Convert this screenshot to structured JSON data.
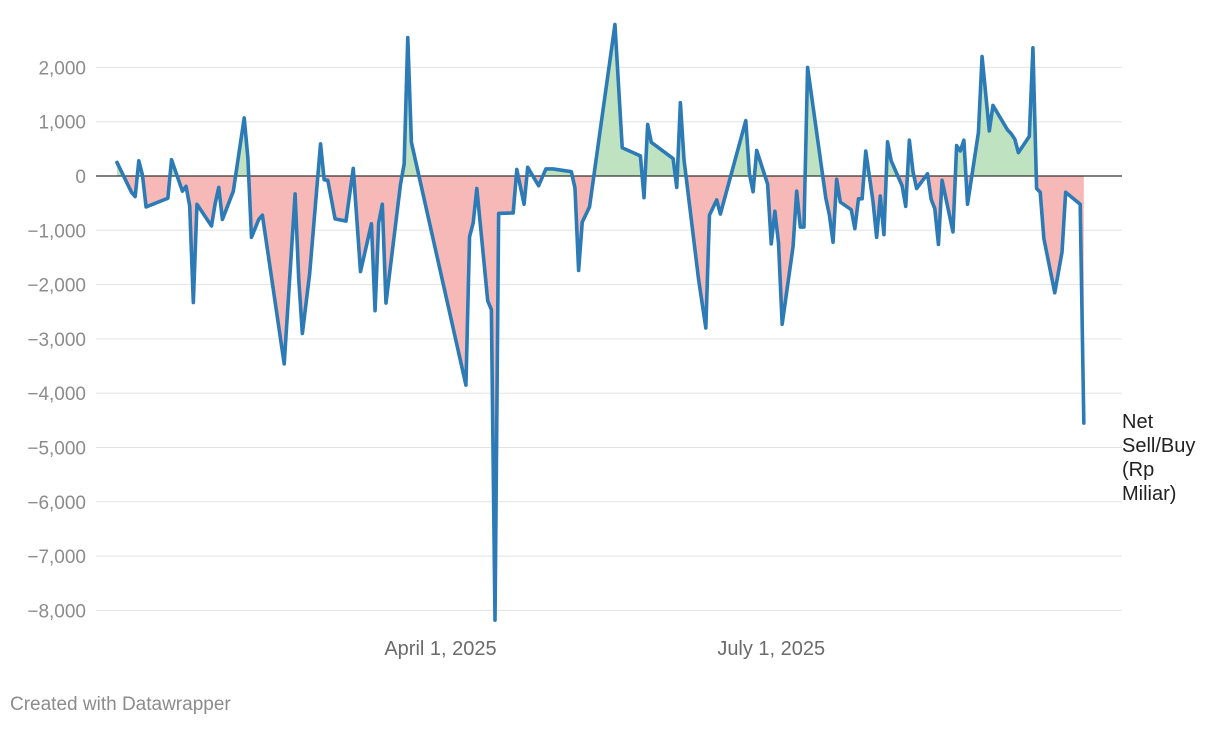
{
  "chart_data": {
    "type": "area",
    "title": "",
    "xlabel": "",
    "ylabel": "",
    "ylim": [
      -8200,
      2850
    ],
    "yticks": [
      2000,
      1000,
      0,
      -1000,
      -2000,
      -3000,
      -4000,
      -5000,
      -6000,
      -7000,
      -8000
    ],
    "ytick_labels": [
      "2,000",
      "1,000",
      "0",
      "−1,000",
      "−2,000",
      "−3,000",
      "−4,000",
      "−5,000",
      "−6,000",
      "−7,000",
      "−8,000"
    ],
    "xrange": [
      "2025-01-02",
      "2025-09-30"
    ],
    "xticks": [
      {
        "date": "2025-04-01",
        "label": "April 1, 2025"
      },
      {
        "date": "2025-07-01",
        "label": "July 1, 2025"
      }
    ],
    "grid": true,
    "colors": {
      "line": "#2c7bb6",
      "positive_fill": "#bfe2c0",
      "negative_fill": "#f7b8b8",
      "zero_line": "#333333",
      "grid": "#e3e3e3"
    },
    "series": [
      {
        "name": "Net Sell/Buy (Rp Miliar)",
        "label_lines": [
          "Net",
          "Sell/Buy",
          "(Rp",
          "Miliar)"
        ],
        "points": [
          [
            "2025-01-02",
            250
          ],
          [
            "2025-01-06",
            -300
          ],
          [
            "2025-01-07",
            -380
          ],
          [
            "2025-01-08",
            280
          ],
          [
            "2025-01-09",
            20
          ],
          [
            "2025-01-10",
            -570
          ],
          [
            "2025-01-16",
            -410
          ],
          [
            "2025-01-17",
            300
          ],
          [
            "2025-01-20",
            -280
          ],
          [
            "2025-01-21",
            -190
          ],
          [
            "2025-01-22",
            -550
          ],
          [
            "2025-01-23",
            -2330
          ],
          [
            "2025-01-24",
            -520
          ],
          [
            "2025-01-28",
            -920
          ],
          [
            "2025-01-29",
            -510
          ],
          [
            "2025-01-30",
            -210
          ],
          [
            "2025-01-31",
            -800
          ],
          [
            "2025-02-03",
            -280
          ],
          [
            "2025-02-06",
            1070
          ],
          [
            "2025-02-07",
            340
          ],
          [
            "2025-02-08",
            -1130
          ],
          [
            "2025-02-10",
            -800
          ],
          [
            "2025-02-11",
            -720
          ],
          [
            "2025-02-17",
            -3460
          ],
          [
            "2025-02-20",
            -330
          ],
          [
            "2025-02-21",
            -1900
          ],
          [
            "2025-02-22",
            -2900
          ],
          [
            "2025-02-24",
            -1800
          ],
          [
            "2025-02-27",
            590
          ],
          [
            "2025-02-28",
            -70
          ],
          [
            "2025-03-01",
            -80
          ],
          [
            "2025-03-03",
            -790
          ],
          [
            "2025-03-06",
            -830
          ],
          [
            "2025-03-08",
            140
          ],
          [
            "2025-03-10",
            -1760
          ],
          [
            "2025-03-13",
            -880
          ],
          [
            "2025-03-14",
            -2480
          ],
          [
            "2025-03-15",
            -860
          ],
          [
            "2025-03-16",
            -520
          ],
          [
            "2025-03-17",
            -2340
          ],
          [
            "2025-03-21",
            -150
          ],
          [
            "2025-03-22",
            220
          ],
          [
            "2025-03-23",
            2550
          ],
          [
            "2025-03-24",
            620
          ],
          [
            "2025-04-08",
            -3850
          ],
          [
            "2025-04-09",
            -1120
          ],
          [
            "2025-04-10",
            -860
          ],
          [
            "2025-04-11",
            -230
          ],
          [
            "2025-04-14",
            -2300
          ],
          [
            "2025-04-15",
            -2460
          ],
          [
            "2025-04-16",
            -8180
          ],
          [
            "2025-04-17",
            -690
          ],
          [
            "2025-04-21",
            -680
          ],
          [
            "2025-04-22",
            120
          ],
          [
            "2025-04-24",
            -520
          ],
          [
            "2025-04-25",
            160
          ],
          [
            "2025-04-28",
            -180
          ],
          [
            "2025-04-30",
            130
          ],
          [
            "2025-05-02",
            130
          ],
          [
            "2025-05-07",
            80
          ],
          [
            "2025-05-08",
            -220
          ],
          [
            "2025-05-09",
            -1740
          ],
          [
            "2025-05-10",
            -850
          ],
          [
            "2025-05-12",
            -570
          ],
          [
            "2025-05-19",
            2790
          ],
          [
            "2025-05-21",
            520
          ],
          [
            "2025-05-26",
            370
          ],
          [
            "2025-05-27",
            -400
          ],
          [
            "2025-05-28",
            950
          ],
          [
            "2025-05-29",
            620
          ],
          [
            "2025-06-04",
            320
          ],
          [
            "2025-06-05",
            -210
          ],
          [
            "2025-06-06",
            1350
          ],
          [
            "2025-06-07",
            300
          ],
          [
            "2025-06-11",
            -1900
          ],
          [
            "2025-06-13",
            -2800
          ],
          [
            "2025-06-14",
            -720
          ],
          [
            "2025-06-16",
            -440
          ],
          [
            "2025-06-17",
            -700
          ],
          [
            "2025-06-24",
            1020
          ],
          [
            "2025-06-25",
            40
          ],
          [
            "2025-06-26",
            -290
          ],
          [
            "2025-06-27",
            470
          ],
          [
            "2025-06-30",
            -150
          ],
          [
            "2025-07-01",
            -1250
          ],
          [
            "2025-07-02",
            -650
          ],
          [
            "2025-07-03",
            -1230
          ],
          [
            "2025-07-04",
            -2730
          ],
          [
            "2025-07-07",
            -1300
          ],
          [
            "2025-07-08",
            -280
          ],
          [
            "2025-07-09",
            -940
          ],
          [
            "2025-07-10",
            -940
          ],
          [
            "2025-07-11",
            2000
          ],
          [
            "2025-07-16",
            -400
          ],
          [
            "2025-07-17",
            -720
          ],
          [
            "2025-07-18",
            -1220
          ],
          [
            "2025-07-19",
            -60
          ],
          [
            "2025-07-20",
            -480
          ],
          [
            "2025-07-23",
            -620
          ],
          [
            "2025-07-24",
            -970
          ],
          [
            "2025-07-25",
            -420
          ],
          [
            "2025-07-26",
            -420
          ],
          [
            "2025-07-27",
            460
          ],
          [
            "2025-07-29",
            -470
          ],
          [
            "2025-07-30",
            -1130
          ],
          [
            "2025-07-31",
            -370
          ],
          [
            "2025-08-01",
            -1080
          ],
          [
            "2025-08-02",
            630
          ],
          [
            "2025-08-03",
            280
          ],
          [
            "2025-08-06",
            -180
          ],
          [
            "2025-08-07",
            -560
          ],
          [
            "2025-08-08",
            660
          ],
          [
            "2025-08-09",
            80
          ],
          [
            "2025-08-10",
            -230
          ],
          [
            "2025-08-13",
            40
          ],
          [
            "2025-08-14",
            -430
          ],
          [
            "2025-08-15",
            -600
          ],
          [
            "2025-08-16",
            -1260
          ],
          [
            "2025-08-17",
            -80
          ],
          [
            "2025-08-20",
            -1030
          ],
          [
            "2025-08-21",
            560
          ],
          [
            "2025-08-22",
            460
          ],
          [
            "2025-08-23",
            660
          ],
          [
            "2025-08-24",
            -520
          ],
          [
            "2025-08-27",
            800
          ],
          [
            "2025-08-28",
            2200
          ],
          [
            "2025-08-30",
            830
          ],
          [
            "2025-08-31",
            1300
          ],
          [
            "2025-09-04",
            850
          ],
          [
            "2025-09-05",
            780
          ],
          [
            "2025-09-06",
            680
          ],
          [
            "2025-09-07",
            430
          ],
          [
            "2025-09-10",
            730
          ],
          [
            "2025-09-11",
            2360
          ],
          [
            "2025-09-12",
            -230
          ],
          [
            "2025-09-13",
            -300
          ],
          [
            "2025-09-14",
            -1150
          ],
          [
            "2025-09-17",
            -2150
          ],
          [
            "2025-09-19",
            -1400
          ],
          [
            "2025-09-20",
            -300
          ],
          [
            "2025-09-24",
            -520
          ],
          [
            "2025-09-25",
            -4550
          ]
        ]
      }
    ]
  },
  "footer": {
    "credit": "Created with Datawrapper"
  }
}
